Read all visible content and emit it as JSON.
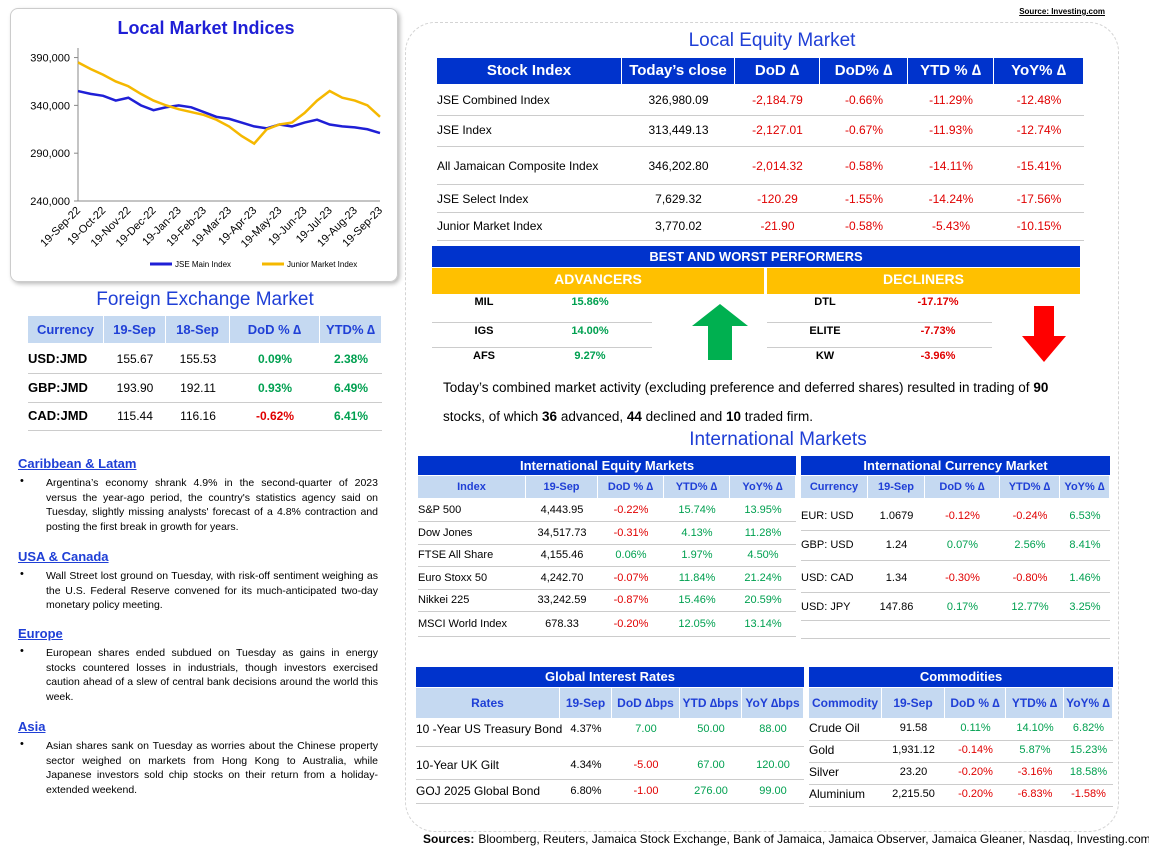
{
  "source_top": "Source: Investing.com",
  "chart": {
    "type": "line",
    "title": "Local Market Indices",
    "categories": [
      "19-Sep-22",
      null,
      "19-Oct-22",
      null,
      "19-Nov-22",
      null,
      "19-Dec-22",
      null,
      "19-Jan-23",
      null,
      "19-Feb-23",
      null,
      "19-Mar-23",
      null,
      "19-Apr-23",
      null,
      "19-May-23",
      null,
      "19-Jun-23",
      null,
      "19-Jul-23",
      null,
      "19-Aug-23",
      null,
      "19-Sep-23"
    ],
    "series": [
      {
        "name": "JSE Main Index",
        "color": "#1f1fd6",
        "values": [
          355000,
          352000,
          350000,
          345000,
          348000,
          340000,
          335000,
          338000,
          340000,
          338000,
          333000,
          328000,
          326000,
          322000,
          318000,
          316000,
          320000,
          318000,
          322000,
          325000,
          320000,
          318000,
          317000,
          315000,
          311000
        ]
      },
      {
        "name": "Junior Market Index",
        "color": "#f5b800",
        "values": [
          385000,
          378000,
          372000,
          365000,
          360000,
          352000,
          345000,
          340000,
          336000,
          333000,
          330000,
          325000,
          318000,
          308000,
          300000,
          315000,
          320000,
          322000,
          332000,
          345000,
          355000,
          348000,
          345000,
          340000,
          328000
        ]
      }
    ],
    "ylim": [
      240000,
      400000
    ],
    "yticks": [
      {
        "value": 240000,
        "label": "240,000"
      },
      {
        "value": 290000,
        "label": "290,000"
      },
      {
        "value": 340000,
        "label": "340,000"
      },
      {
        "value": 390000,
        "label": "390,000"
      }
    ]
  },
  "fx": {
    "title": "Foreign Exchange Market",
    "header": [
      "Currency",
      "19-Sep",
      "18-Sep",
      "DoD % ∆",
      "YTD% ∆"
    ],
    "rows": [
      [
        "USD:JMD",
        "155.67",
        "155.53",
        "0.09%",
        "2.38%"
      ],
      [
        "GBP:JMD",
        "193.90",
        "192.11",
        "0.93%",
        "6.49%"
      ],
      [
        "CAD:JMD",
        "115.44",
        "116.16",
        "-0.62%",
        "6.41%"
      ]
    ]
  },
  "news": [
    {
      "heading": "Caribbean & Latam",
      "text": "Argentina’s economy shrank 4.9% in the second-quarter of 2023 versus the year-ago period, the country's statistics agency said on Tuesday, slightly missing analysts' forecast of a 4.8% contraction and posting the first break in growth for years."
    },
    {
      "heading": "USA & Canada",
      "text": "Wall Street lost ground on Tuesday, with risk-off sentiment weighing as the U.S. Federal Reserve convened for its much-anticipated two-day monetary policy meeting."
    },
    {
      "heading": "Europe",
      "text": "European shares ended subdued on Tuesday as gains in energy stocks countered losses in industrials, though investors exercised caution ahead of a slew of central bank decisions around the world this week."
    },
    {
      "heading": "Asia",
      "text": "Asian shares sank on Tuesday as worries about the Chinese property sector weighed on markets from Hong Kong to Australia, while Japanese investors sold chip stocks on their return from a holiday-extended weekend."
    }
  ],
  "equity": {
    "title": "Local Equity Market",
    "header": [
      "Stock Index",
      "Today’s close",
      "DoD  ∆",
      "DoD% ∆",
      "YTD % ∆",
      "YoY% ∆"
    ],
    "rows": [
      [
        "JSE Combined Index",
        "326,980.09",
        "-2,184.79",
        "-0.66%",
        "-11.29%",
        "-12.48%"
      ],
      [
        "JSE Index",
        "313,449.13",
        "-2,127.01",
        "-0.67%",
        "-11.93%",
        "-12.74%"
      ],
      [
        "All Jamaican Composite Index",
        "346,202.80",
        "-2,014.32",
        "-0.58%",
        "-14.11%",
        "-15.41%"
      ],
      [
        "JSE Select Index",
        "7,629.32",
        "-120.29",
        "-1.55%",
        "-14.24%",
        "-17.56%"
      ],
      [
        "Junior Market Index",
        "3,770.02",
        "-21.90",
        "-0.58%",
        "-5.43%",
        "-10.15%"
      ]
    ]
  },
  "performers": {
    "title": "BEST AND WORST PERFORMERS",
    "advancers_label": "ADVANCERS",
    "decliners_label": "DECLINERS",
    "advancers": [
      [
        "MIL",
        "15.86%"
      ],
      [
        "IGS",
        "14.00%"
      ],
      [
        "AFS",
        "9.27%"
      ]
    ],
    "decliners": [
      [
        "DTL",
        "-17.17%"
      ],
      [
        "ELITE",
        "-7.73%"
      ],
      [
        "KW",
        "-3.96%"
      ]
    ]
  },
  "summary": [
    "Today’s combined market activity (excluding preference and deferred shares) resulted in trading of ",
    "90",
    " stocks, of which ",
    "36",
    " advanced, ",
    "44",
    " declined and ",
    "10",
    " traded firm."
  ],
  "international": {
    "title": "International Markets",
    "equity": {
      "title": "International Equity Markets",
      "header": [
        "Index",
        "19-Sep",
        "DoD % ∆",
        "YTD% ∆",
        "YoY% ∆"
      ],
      "rows": [
        [
          "S&P 500",
          "4,443.95",
          "-0.22%",
          "15.74%",
          "13.95%"
        ],
        [
          "Dow Jones",
          "34,517.73",
          "-0.31%",
          "4.13%",
          "11.28%"
        ],
        [
          "FTSE All Share",
          "4,155.46",
          "0.06%",
          "1.97%",
          "4.50%"
        ],
        [
          "Euro Stoxx 50",
          "4,242.70",
          "-0.07%",
          "11.84%",
          "21.24%"
        ],
        [
          "Nikkei 225",
          "33,242.59",
          "-0.87%",
          "15.46%",
          "20.59%"
        ],
        [
          "MSCI World Index",
          "678.33",
          "-0.20%",
          "12.05%",
          "13.14%"
        ]
      ]
    },
    "currency": {
      "title": "International Currency Market",
      "header": [
        "Currency",
        "19-Sep",
        "DoD % ∆",
        "YTD% ∆",
        "YoY% ∆"
      ],
      "rows": [
        [
          "EUR: USD",
          "1.0679",
          "-0.12%",
          "-0.24%",
          "6.53%"
        ],
        [
          "GBP: USD",
          "1.24",
          "0.07%",
          "2.56%",
          "8.41%"
        ],
        [
          "USD: CAD",
          "1.34",
          "-0.30%",
          "-0.80%",
          "1.46%"
        ],
        [
          "USD: JPY",
          "147.86",
          "0.17%",
          "12.77%",
          "3.25%"
        ]
      ]
    },
    "rates": {
      "title": "Global Interest Rates",
      "header": [
        "Rates",
        "19-Sep",
        "DoD ∆bps",
        "YTD ∆bps",
        "YoY ∆bps"
      ],
      "rows": [
        [
          "10 -Year US Treasury Bond",
          "4.37%",
          "7.00",
          "50.00",
          "88.00"
        ],
        [
          "10-Year UK Gilt",
          "4.34%",
          "-5.00",
          "67.00",
          "120.00"
        ],
        [
          "GOJ 2025 Global Bond",
          "6.80%",
          "-1.00",
          "276.00",
          "99.00"
        ]
      ]
    },
    "commodities": {
      "title": "Commodities",
      "header": [
        "Commodity",
        "19-Sep",
        "DoD % ∆",
        "YTD% ∆",
        "YoY% ∆"
      ],
      "rows": [
        [
          "Crude Oil",
          "91.58",
          "0.11%",
          "14.10%",
          "6.82%"
        ],
        [
          "Gold",
          "1,931.12",
          "-0.14%",
          "5.87%",
          "15.23%"
        ],
        [
          "Silver",
          "23.20",
          "-0.20%",
          "-3.16%",
          "18.58%"
        ],
        [
          "Aluminium",
          "2,215.50",
          "-0.20%",
          "-6.83%",
          "-1.58%"
        ]
      ]
    }
  },
  "footer_label": "Sources:",
  "footer": "Bloomberg, Reuters, Jamaica Stock Exchange, Bank of Jamaica, Jamaica Observer, Jamaica Gleaner, Nasdaq, Investing.com"
}
